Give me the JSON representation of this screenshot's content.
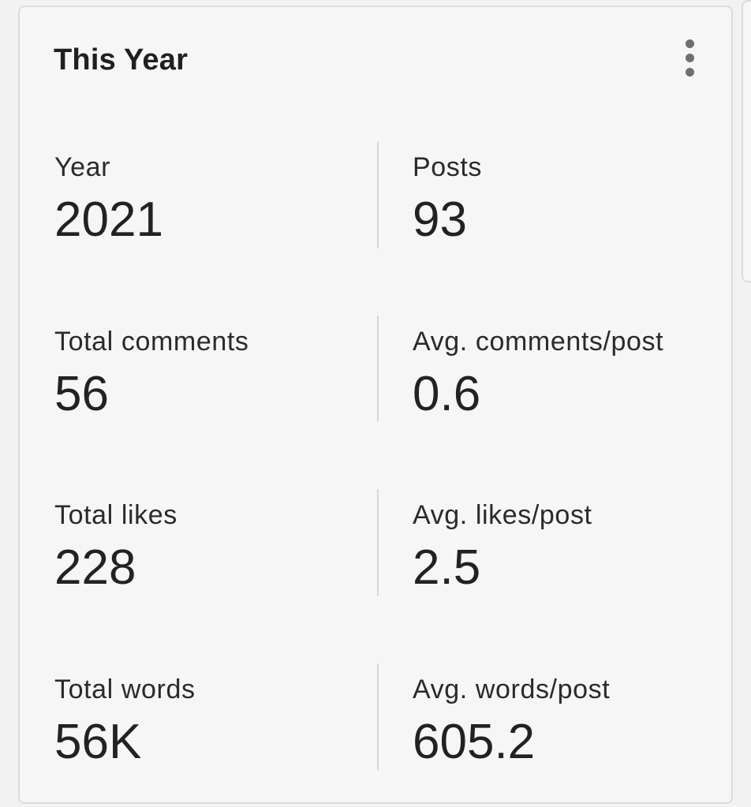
{
  "card": {
    "title": "This Year",
    "more_icon": "more-vertical-icon"
  },
  "stats": {
    "year": {
      "label": "Year",
      "value": "2021"
    },
    "posts": {
      "label": "Posts",
      "value": "93"
    },
    "total_comments": {
      "label": "Total comments",
      "value": "56"
    },
    "avg_comments_post": {
      "label": "Avg. comments/post",
      "value": "0.6"
    },
    "total_likes": {
      "label": "Total likes",
      "value": "228"
    },
    "avg_likes_post": {
      "label": "Avg. likes/post",
      "value": "2.5"
    },
    "total_words": {
      "label": "Total words",
      "value": "56K"
    },
    "avg_words_post": {
      "label": "Avg. words/post",
      "value": "605.2"
    }
  },
  "colors": {
    "page_background": "#f2f2f2",
    "card_background": "#f6f6f6",
    "card_border": "#dcdcdc",
    "text_primary": "#222222",
    "icon": "#6f6f6f",
    "divider": "#d6d6d6"
  }
}
